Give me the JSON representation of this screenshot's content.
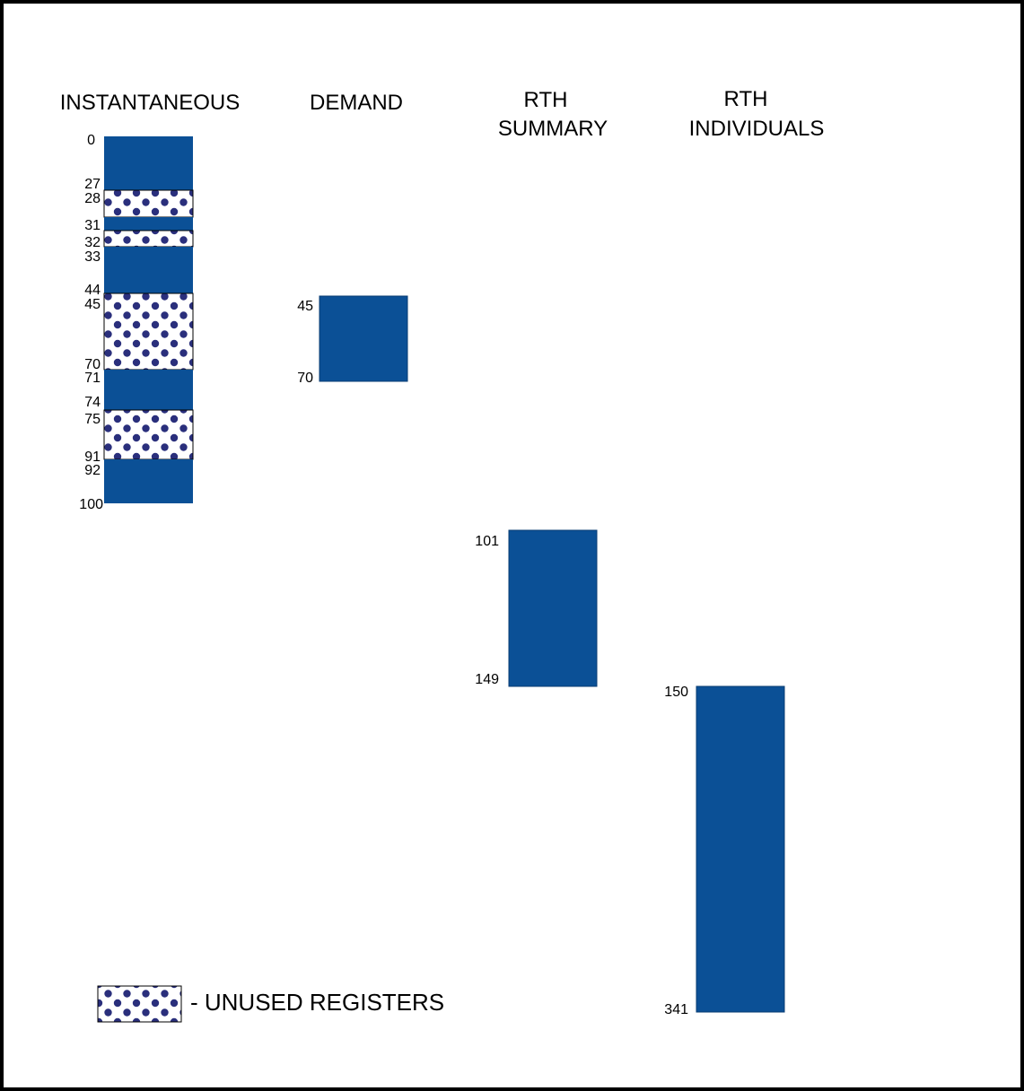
{
  "colors": {
    "used": "#0b5096",
    "unused_dot": "#2a2f7c",
    "unused_bg": "#ffffff",
    "border": "#000000"
  },
  "columns": [
    {
      "id": "instantaneous",
      "title_lines": [
        "INSTANTANEOUS"
      ],
      "segments": [
        {
          "start": 0,
          "end": 27,
          "used": true,
          "labels": [
            "0",
            "27"
          ]
        },
        {
          "start": 28,
          "end": 31,
          "used": false,
          "labels": [
            "28"
          ]
        },
        {
          "start": 31,
          "end": 32,
          "used": true,
          "labels": [
            "31"
          ]
        },
        {
          "start": 32,
          "end": 33,
          "used": false,
          "labels": [
            "32"
          ]
        },
        {
          "start": 33,
          "end": 44,
          "used": true,
          "labels": [
            "33",
            "44"
          ]
        },
        {
          "start": 45,
          "end": 70,
          "used": false,
          "labels": [
            "45",
            "70"
          ]
        },
        {
          "start": 71,
          "end": 74,
          "used": true,
          "labels": [
            "71",
            "74"
          ]
        },
        {
          "start": 75,
          "end": 91,
          "used": false,
          "labels": [
            "75",
            "91"
          ]
        },
        {
          "start": 92,
          "end": 100,
          "used": true,
          "labels": [
            "92",
            "100"
          ]
        }
      ]
    },
    {
      "id": "demand",
      "title_lines": [
        "DEMAND"
      ],
      "segments": [
        {
          "start": 45,
          "end": 70,
          "used": true,
          "labels": [
            "45",
            "70"
          ]
        }
      ]
    },
    {
      "id": "rth-summary",
      "title_lines": [
        "RTH",
        "SUMMARY"
      ],
      "segments": [
        {
          "start": 101,
          "end": 149,
          "used": true,
          "labels": [
            "101",
            "149"
          ]
        }
      ]
    },
    {
      "id": "rth-individuals",
      "title_lines": [
        "RTH",
        "INDIVIDUALS"
      ],
      "segments": [
        {
          "start": 150,
          "end": 341,
          "used": true,
          "labels": [
            "150",
            "341"
          ]
        }
      ]
    }
  ],
  "legend": {
    "label": "- UNUSED REGISTERS"
  }
}
